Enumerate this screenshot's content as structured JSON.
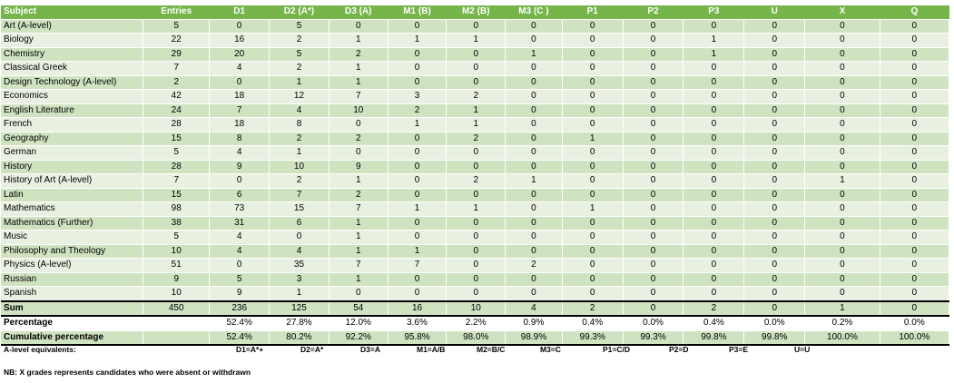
{
  "table": {
    "headers": [
      "Subject",
      "Entries",
      "D1",
      "D2 (A*)",
      "D3 (A)",
      "M1 (B)",
      "M2 (B)",
      "M3 (C )",
      "P1",
      "P2",
      "P3",
      "U",
      "X",
      "Q"
    ],
    "rows": [
      [
        "Art (A-level)",
        "5",
        "0",
        "5",
        "0",
        "0",
        "0",
        "0",
        "0",
        "0",
        "0",
        "0",
        "0",
        "0"
      ],
      [
        "Biology",
        "22",
        "16",
        "2",
        "1",
        "1",
        "1",
        "0",
        "0",
        "0",
        "1",
        "0",
        "0",
        "0"
      ],
      [
        "Chemistry",
        "29",
        "20",
        "5",
        "2",
        "0",
        "0",
        "1",
        "0",
        "0",
        "1",
        "0",
        "0",
        "0"
      ],
      [
        "Classical Greek",
        "7",
        "4",
        "2",
        "1",
        "0",
        "0",
        "0",
        "0",
        "0",
        "0",
        "0",
        "0",
        "0"
      ],
      [
        "Design Technology (A-level)",
        "2",
        "0",
        "1",
        "1",
        "0",
        "0",
        "0",
        "0",
        "0",
        "0",
        "0",
        "0",
        "0"
      ],
      [
        "Economics",
        "42",
        "18",
        "12",
        "7",
        "3",
        "2",
        "0",
        "0",
        "0",
        "0",
        "0",
        "0",
        "0"
      ],
      [
        "English Literature",
        "24",
        "7",
        "4",
        "10",
        "2",
        "1",
        "0",
        "0",
        "0",
        "0",
        "0",
        "0",
        "0"
      ],
      [
        "French",
        "28",
        "18",
        "8",
        "0",
        "1",
        "1",
        "0",
        "0",
        "0",
        "0",
        "0",
        "0",
        "0"
      ],
      [
        "Geography",
        "15",
        "8",
        "2",
        "2",
        "0",
        "2",
        "0",
        "1",
        "0",
        "0",
        "0",
        "0",
        "0"
      ],
      [
        "German",
        "5",
        "4",
        "1",
        "0",
        "0",
        "0",
        "0",
        "0",
        "0",
        "0",
        "0",
        "0",
        "0"
      ],
      [
        "History",
        "28",
        "9",
        "10",
        "9",
        "0",
        "0",
        "0",
        "0",
        "0",
        "0",
        "0",
        "0",
        "0"
      ],
      [
        "History of Art (A-level)",
        "7",
        "0",
        "2",
        "1",
        "0",
        "2",
        "1",
        "0",
        "0",
        "0",
        "0",
        "1",
        "0"
      ],
      [
        "Latin",
        "15",
        "6",
        "7",
        "2",
        "0",
        "0",
        "0",
        "0",
        "0",
        "0",
        "0",
        "0",
        "0"
      ],
      [
        "Mathematics",
        "98",
        "73",
        "15",
        "7",
        "1",
        "1",
        "0",
        "1",
        "0",
        "0",
        "0",
        "0",
        "0"
      ],
      [
        "Mathematics (Further)",
        "38",
        "31",
        "6",
        "1",
        "0",
        "0",
        "0",
        "0",
        "0",
        "0",
        "0",
        "0",
        "0"
      ],
      [
        "Music",
        "5",
        "4",
        "0",
        "1",
        "0",
        "0",
        "0",
        "0",
        "0",
        "0",
        "0",
        "0",
        "0"
      ],
      [
        "Philosophy and Theology",
        "10",
        "4",
        "4",
        "1",
        "1",
        "0",
        "0",
        "0",
        "0",
        "0",
        "0",
        "0",
        "0"
      ],
      [
        "Physics (A-level)",
        "51",
        "0",
        "35",
        "7",
        "7",
        "0",
        "2",
        "0",
        "0",
        "0",
        "0",
        "0",
        "0"
      ],
      [
        "Russian",
        "9",
        "5",
        "3",
        "1",
        "0",
        "0",
        "0",
        "0",
        "0",
        "0",
        "0",
        "0",
        "0"
      ],
      [
        "Spanish",
        "10",
        "9",
        "1",
        "0",
        "0",
        "0",
        "0",
        "0",
        "0",
        "0",
        "0",
        "0",
        "0"
      ]
    ],
    "sum": [
      "Sum",
      "450",
      "236",
      "125",
      "54",
      "16",
      "10",
      "4",
      "2",
      "0",
      "2",
      "0",
      "1",
      "0"
    ],
    "percentage": [
      "Percentage",
      "",
      "52.4%",
      "27.8%",
      "12.0%",
      "3.6%",
      "2.2%",
      "0.9%",
      "0.4%",
      "0.0%",
      "0.4%",
      "0.0%",
      "0.2%",
      "0.0%"
    ],
    "cumulative": [
      "Cumulative percentage",
      "",
      "52.4%",
      "80.2%",
      "92.2%",
      "95.8%",
      "98.0%",
      "98.9%",
      "99.3%",
      "99.3%",
      "99.8%",
      "99.8%",
      "100.0%",
      "100.0%"
    ]
  },
  "equivalents": {
    "label": "A-level equivalents:",
    "items": [
      "D1=A*+",
      "D2=A*",
      "D3=A",
      "M1=A/B",
      "M2=B/C",
      "M3=C",
      "P1=C/D",
      "P2=D",
      "P3=E",
      "U=U"
    ]
  },
  "note": "NB: X grades represents candidates who were absent or withdrawn",
  "colors": {
    "header": "#76b54a",
    "row_dark": "#cfe3c1",
    "row_light": "#e8f1e1"
  }
}
